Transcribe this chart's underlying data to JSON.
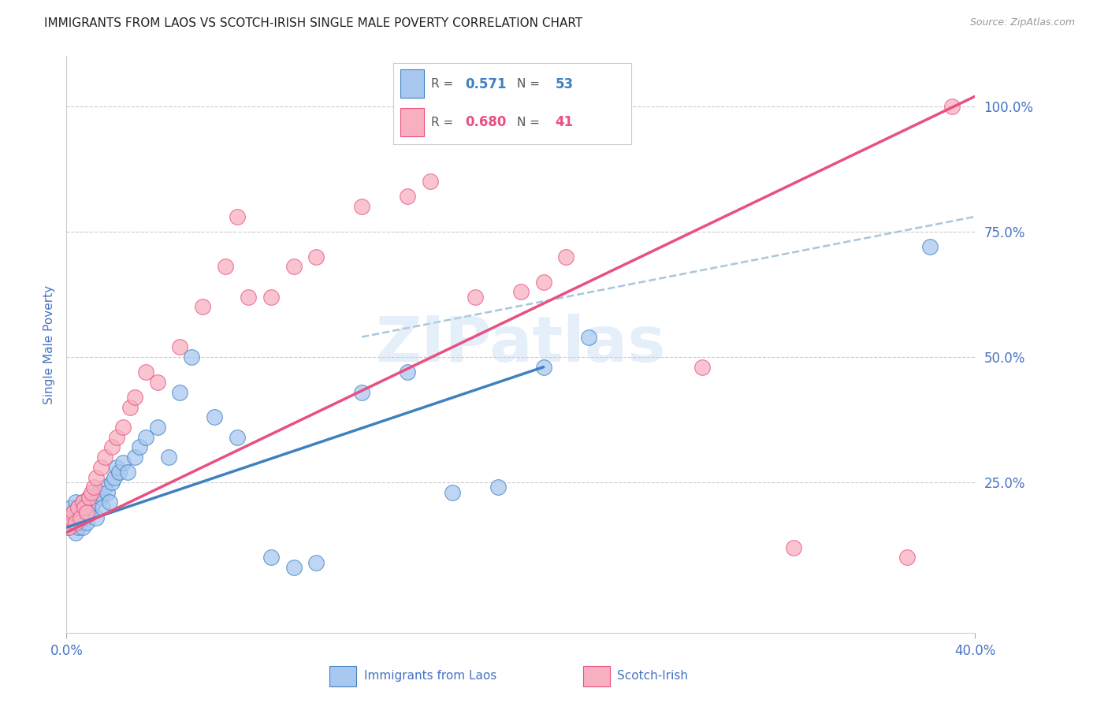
{
  "title": "IMMIGRANTS FROM LAOS VS SCOTCH-IRISH SINGLE MALE POVERTY CORRELATION CHART",
  "source": "Source: ZipAtlas.com",
  "ylabel": "Single Male Poverty",
  "watermark": "ZIPatlas",
  "legend_blue_R": "0.571",
  "legend_blue_N": "53",
  "legend_pink_R": "0.680",
  "legend_pink_N": "41",
  "legend_blue_label": "Immigrants from Laos",
  "legend_pink_label": "Scotch-Irish",
  "ytick_labels": [
    "100.0%",
    "75.0%",
    "50.0%",
    "25.0%"
  ],
  "ytick_values": [
    1.0,
    0.75,
    0.5,
    0.25
  ],
  "xlim": [
    0.0,
    0.4
  ],
  "ylim": [
    -0.05,
    1.1
  ],
  "blue_color": "#A8C8F0",
  "pink_color": "#F8B0C0",
  "blue_line_color": "#4080C0",
  "pink_line_color": "#E85080",
  "dashed_line_color": "#A0C0D8",
  "axis_color": "#4472C4",
  "grid_color": "#CCCCCC",
  "blue_scatter_x": [
    0.001,
    0.002,
    0.002,
    0.003,
    0.003,
    0.004,
    0.004,
    0.005,
    0.005,
    0.005,
    0.006,
    0.006,
    0.007,
    0.007,
    0.008,
    0.008,
    0.009,
    0.01,
    0.01,
    0.011,
    0.012,
    0.013,
    0.014,
    0.015,
    0.016,
    0.017,
    0.018,
    0.019,
    0.02,
    0.021,
    0.022,
    0.023,
    0.025,
    0.027,
    0.03,
    0.032,
    0.035,
    0.04,
    0.045,
    0.05,
    0.055,
    0.065,
    0.075,
    0.09,
    0.1,
    0.11,
    0.13,
    0.15,
    0.17,
    0.19,
    0.21,
    0.23,
    0.38
  ],
  "blue_scatter_y": [
    0.16,
    0.18,
    0.2,
    0.17,
    0.19,
    0.15,
    0.21,
    0.16,
    0.18,
    0.2,
    0.17,
    0.19,
    0.16,
    0.21,
    0.18,
    0.2,
    0.17,
    0.19,
    0.22,
    0.2,
    0.21,
    0.18,
    0.23,
    0.22,
    0.2,
    0.24,
    0.23,
    0.21,
    0.25,
    0.26,
    0.28,
    0.27,
    0.29,
    0.27,
    0.3,
    0.32,
    0.34,
    0.36,
    0.3,
    0.43,
    0.5,
    0.38,
    0.34,
    0.1,
    0.08,
    0.09,
    0.43,
    0.47,
    0.23,
    0.24,
    0.48,
    0.54,
    0.72
  ],
  "pink_scatter_x": [
    0.001,
    0.002,
    0.003,
    0.004,
    0.005,
    0.006,
    0.007,
    0.008,
    0.009,
    0.01,
    0.011,
    0.012,
    0.013,
    0.015,
    0.017,
    0.02,
    0.022,
    0.025,
    0.028,
    0.03,
    0.035,
    0.04,
    0.05,
    0.06,
    0.07,
    0.075,
    0.08,
    0.09,
    0.1,
    0.11,
    0.13,
    0.15,
    0.16,
    0.18,
    0.2,
    0.21,
    0.22,
    0.28,
    0.32,
    0.37,
    0.39
  ],
  "pink_scatter_y": [
    0.16,
    0.18,
    0.19,
    0.17,
    0.2,
    0.18,
    0.21,
    0.2,
    0.19,
    0.22,
    0.23,
    0.24,
    0.26,
    0.28,
    0.3,
    0.32,
    0.34,
    0.36,
    0.4,
    0.42,
    0.47,
    0.45,
    0.52,
    0.6,
    0.68,
    0.78,
    0.62,
    0.62,
    0.68,
    0.7,
    0.8,
    0.82,
    0.85,
    0.62,
    0.63,
    0.65,
    0.7,
    0.48,
    0.12,
    0.1,
    1.0
  ],
  "blue_line_x": [
    0.0,
    0.21
  ],
  "blue_line_y": [
    0.16,
    0.48
  ],
  "pink_line_x": [
    0.0,
    0.4
  ],
  "pink_line_y": [
    0.15,
    1.02
  ],
  "dashed_line_x": [
    0.13,
    0.4
  ],
  "dashed_line_y": [
    0.54,
    0.78
  ]
}
